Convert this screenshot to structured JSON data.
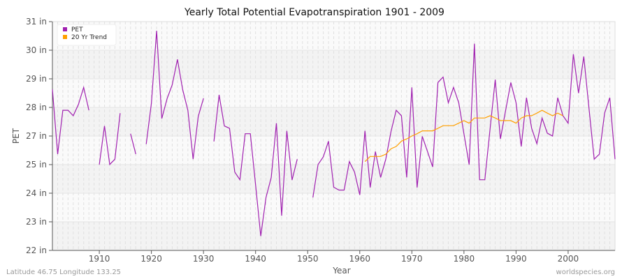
{
  "chart_data": {
    "type": "line",
    "title": "Yearly Total Potential Evapotranspiration 1901 - 2009",
    "xlabel": "Year",
    "ylabel": "PET",
    "xlim": [
      1901,
      2009
    ],
    "x_ticks": [
      1910,
      1920,
      1930,
      1940,
      1950,
      1960,
      1970,
      1980,
      1990,
      2000
    ],
    "y_tick_values": [
      22,
      23,
      24,
      25,
      27,
      28,
      29,
      30,
      31
    ],
    "y_tick_labels": [
      "22 in",
      "23 in",
      "24 in",
      "25 in",
      "27 in",
      "28 in",
      "29 in",
      "30 in",
      "31 in"
    ],
    "grid": true,
    "legend_position": "top-left",
    "series": [
      {
        "name": "PET",
        "color": "#a020b0",
        "start_year": 1901,
        "values": [
          28.63,
          25.73,
          27.9,
          27.9,
          27.71,
          28.11,
          28.7,
          27.9,
          null,
          25.0,
          27.35,
          25.01,
          25.38,
          27.8,
          null,
          27.08,
          25.73,
          null,
          26.43,
          28.14,
          30.68,
          27.61,
          28.3,
          28.79,
          29.68,
          28.63,
          27.9,
          25.38,
          27.69,
          28.32,
          null,
          26.62,
          28.44,
          27.35,
          27.27,
          24.74,
          24.47,
          27.08,
          27.08,
          24.29,
          22.5,
          23.85,
          24.55,
          27.45,
          23.21,
          27.18,
          24.46,
          25.38,
          null,
          null,
          23.85,
          25.01,
          25.54,
          26.64,
          24.21,
          24.11,
          24.11,
          25.21,
          24.74,
          23.94,
          27.18,
          24.2,
          25.91,
          24.55,
          25.38,
          27.16,
          27.9,
          27.71,
          24.55,
          28.7,
          24.2,
          26.98,
          25.91,
          24.92,
          28.87,
          29.06,
          28.16,
          28.7,
          28.16,
          27.08,
          25.0,
          30.23,
          24.47,
          24.47,
          27.22,
          28.97,
          26.8,
          27.9,
          28.87,
          28.16,
          26.27,
          28.34,
          27.27,
          26.46,
          27.63,
          27.1,
          27.0,
          28.34,
          27.71,
          27.45,
          29.86,
          28.5,
          29.78,
          27.98,
          25.38,
          25.73,
          27.8,
          28.34,
          25.38
        ]
      },
      {
        "name": "20 Yr Trend",
        "color": "#ffa000",
        "start_year": 1961,
        "values": [
          25.21,
          25.57,
          25.57,
          25.57,
          25.73,
          26.11,
          26.27,
          26.64,
          26.8,
          27.0,
          27.08,
          27.18,
          27.18,
          27.18,
          27.27,
          27.36,
          27.36,
          27.36,
          27.45,
          27.54,
          27.45,
          27.63,
          27.63,
          27.63,
          27.71,
          27.63,
          27.54,
          27.54,
          27.54,
          27.45,
          27.63,
          27.71,
          27.71,
          27.8,
          27.9,
          27.8,
          27.71,
          27.8,
          27.71
        ]
      }
    ]
  },
  "footer": {
    "location": "Latitude 46.75 Longitude 133.25",
    "source": "worldspecies.org"
  }
}
